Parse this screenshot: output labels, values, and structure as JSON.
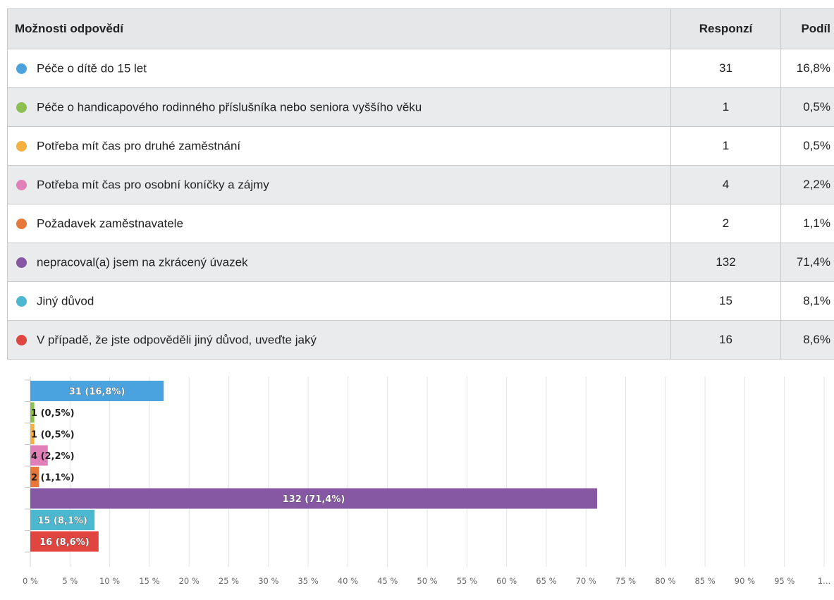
{
  "table": {
    "headers": {
      "option": "Možnosti odpovědí",
      "responses": "Responzí",
      "share": "Podíl"
    },
    "rows": [
      {
        "label": "Péče o dítě do 15 let",
        "responses": "31",
        "share": "16,8%",
        "color": "#4aa3df"
      },
      {
        "label": "Péče o handicapového rodinného příslušníka nebo seniora vyššího věku",
        "responses": "1",
        "share": "0,5%",
        "color": "#8cc152"
      },
      {
        "label": "Potřeba mít čas pro druhé zaměstnání",
        "responses": "1",
        "share": "0,5%",
        "color": "#f6b042"
      },
      {
        "label": "Potřeba mít čas pro osobní koníčky a zájmy",
        "responses": "4",
        "share": "2,2%",
        "color": "#e07fb8"
      },
      {
        "label": "Požadavek zaměstnavatele",
        "responses": "2",
        "share": "1,1%",
        "color": "#e8773b"
      },
      {
        "label": "nepracoval(a) jsem na zkrácený úvazek",
        "responses": "132",
        "share": "71,4%",
        "color": "#8657a3"
      },
      {
        "label": "Jiný důvod",
        "responses": "15",
        "share": "8,1%",
        "color": "#4bb8cf"
      },
      {
        "label": "V případě, že jste odpověděli jiný důvod, uveďte jaký",
        "responses": "16",
        "share": "8,6%",
        "color": "#e0463f"
      }
    ]
  },
  "chart_data": {
    "type": "bar",
    "orientation": "horizontal",
    "categories": [
      "Péče o dítě do 15 let",
      "Péče o handicapového rodinného příslušníka nebo seniora vyššího věku",
      "Potřeba mít čas pro druhé zaměstnání",
      "Potřeba mít čas pro osobní koníčky a zájmy",
      "Požadavek zaměstnavatele",
      "nepracoval(a) jsem na zkrácený úvazek",
      "Jiný důvod",
      "V případě, že jste odpověděli jiný důvod, uveďte jaký"
    ],
    "values": [
      16.8,
      0.5,
      0.5,
      2.2,
      1.1,
      71.4,
      8.1,
      8.6
    ],
    "data_labels": [
      "31 (16,8%)",
      "1 (0,5%)",
      "1 (0,5%)",
      "4 (2,2%)",
      "2 (1,1%)",
      "132 (71,4%)",
      "15 (8,1%)",
      "16 (8,6%)"
    ],
    "colors": [
      "#4aa3df",
      "#8cc152",
      "#f6b042",
      "#e07fb8",
      "#e8773b",
      "#8657a3",
      "#4bb8cf",
      "#e0463f"
    ],
    "x_ticks": [
      "0 %",
      "5 %",
      "10 %",
      "15 %",
      "20 %",
      "25 %",
      "30 %",
      "35 %",
      "40 %",
      "45 %",
      "50 %",
      "55 %",
      "60 %",
      "65 %",
      "70 %",
      "75 %",
      "80 %",
      "85 %",
      "90 %",
      "95 %",
      "1..."
    ],
    "xlim": [
      0,
      100
    ],
    "grid": true
  }
}
